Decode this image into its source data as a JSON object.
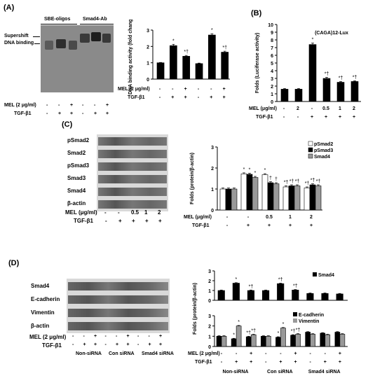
{
  "panels": {
    "a": {
      "letter": "(A)"
    },
    "b": {
      "letter": "(B)"
    },
    "c": {
      "letter": "(C)"
    },
    "d": {
      "letter": "(D)"
    }
  },
  "gel_a": {
    "header_left": "SBE-oligos",
    "header_right": "Smad4-Ab",
    "label_supershift": "Supershift",
    "label_binding": "DNA binding",
    "row_mel_label": "MEL (2 μg/ml)",
    "row_tgf_label": "TGF-β1",
    "mel_signs": [
      "-",
      "-",
      "+",
      "-",
      "-",
      "+"
    ],
    "tgf_signs": [
      "-",
      "+",
      "+",
      "-",
      "+",
      "+"
    ]
  },
  "blot_c": {
    "rows": [
      "pSmad2",
      "Smad2",
      "pSmad3",
      "Smad3",
      "Smad4",
      "β-actin"
    ],
    "row_mel_label": "MEL (μg/ml)",
    "row_tgf_label": "TGF-β1",
    "mel_values": [
      "-",
      "-",
      "0.5",
      "1",
      "2"
    ],
    "tgf_signs": [
      "-",
      "+",
      "+",
      "+",
      "+"
    ]
  },
  "blot_d": {
    "rows": [
      "Smad4",
      "E-cadherin",
      "Vimentin",
      "β-actin"
    ],
    "row_mel_label": "MEL (2 μg/ml)",
    "row_tgf_label": "TGF-β1",
    "mel_signs": [
      "-",
      "-",
      "+",
      "-",
      "-",
      "+",
      "-",
      "-",
      "+"
    ],
    "tgf_signs": [
      "-",
      "+",
      "+",
      "-",
      "+",
      "+",
      "-",
      "+",
      "+"
    ],
    "groups": [
      "Non-siRNA",
      "Con siRNA",
      "Smad4 siRNA"
    ]
  },
  "chart_data": [
    {
      "id": "A",
      "type": "bar",
      "ylabel": "DNA binding activity (fold change)",
      "ylim": [
        0,
        3
      ],
      "yticks": [
        0,
        1,
        2,
        3
      ],
      "values": [
        1.0,
        2.05,
        1.4,
        0.95,
        2.7,
        1.65
      ],
      "errors": [
        0.02,
        0.08,
        0.05,
        0.03,
        0.08,
        0.06
      ],
      "annotations": [
        "",
        "*",
        "*†",
        "",
        "*",
        "*†"
      ],
      "row_labels": {
        "mel": "MEL (2 μg/ml)",
        "tgf": "TGF-β1"
      },
      "mel_signs": [
        "-",
        "-",
        "+",
        "-",
        "-",
        "+"
      ],
      "tgf_signs": [
        "-",
        "+",
        "+",
        "-",
        "+",
        "+"
      ]
    },
    {
      "id": "B",
      "type": "line",
      "title": "(CAGA)12-Lux",
      "ylabel": "Folds (Luciferase activity)",
      "ylim": [
        0,
        10
      ],
      "yticks": [
        0,
        1,
        2,
        3,
        4,
        5,
        6,
        7,
        8,
        9,
        10
      ],
      "values": [
        1.6,
        1.6,
        7.4,
        3.0,
        2.5,
        2.6
      ],
      "errors": [
        0.1,
        0.1,
        0.2,
        0.15,
        0.1,
        0.1
      ],
      "annotations": [
        "",
        "",
        "*",
        "*†",
        "*†",
        "*†"
      ],
      "row_labels": {
        "mel": "MEL (μg/ml)",
        "tgf": "TGF-β1"
      },
      "mel_values": [
        "-",
        "2",
        "-",
        "0.5",
        "1",
        "2"
      ],
      "tgf_signs": [
        "-",
        "-",
        "+",
        "+",
        "+",
        "+"
      ]
    },
    {
      "id": "C",
      "type": "bar",
      "ylabel": "Folds (protein/β-actin)",
      "ylim": [
        0,
        3
      ],
      "yticks": [
        0,
        1,
        2,
        3
      ],
      "legend": [
        "pSmad2",
        "pSmad3",
        "Smad4"
      ],
      "series": [
        {
          "name": "pSmad2",
          "values": [
            1.0,
            1.72,
            1.68,
            1.1,
            1.05
          ],
          "annotations": [
            "",
            "*",
            "*",
            "*†",
            "*†"
          ]
        },
        {
          "name": "pSmad3",
          "values": [
            1.0,
            1.7,
            1.3,
            1.15,
            1.2
          ],
          "annotations": [
            "",
            "*",
            "†",
            "*†",
            "*†"
          ]
        },
        {
          "name": "Smad4",
          "values": [
            1.0,
            1.55,
            1.25,
            1.15,
            1.15
          ],
          "annotations": [
            "",
            "*",
            "†",
            "*†",
            "*†"
          ]
        }
      ],
      "row_labels": {
        "mel": "MEL (μg/ml)",
        "tgf": "TGF-β1"
      },
      "mel_values": [
        "-",
        "-",
        "0.5",
        "1",
        "2"
      ],
      "tgf_signs": [
        "-",
        "+",
        "+",
        "+",
        "+"
      ]
    },
    {
      "id": "D-top",
      "type": "bar",
      "ylabel": "Folds (protein/β-actin)",
      "ylim": [
        0,
        3
      ],
      "yticks": [
        0,
        1,
        2,
        3
      ],
      "legend": [
        "Smad4"
      ],
      "series": [
        {
          "name": "Smad4",
          "values": [
            1.0,
            1.75,
            1.0,
            1.0,
            1.7,
            1.05,
            0.7,
            0.7,
            0.65
          ],
          "annotations": [
            "",
            "*",
            "*†",
            "",
            "*†",
            "*†",
            "",
            "",
            ""
          ]
        }
      ]
    },
    {
      "id": "D-bottom",
      "type": "bar",
      "ylim": [
        0,
        3
      ],
      "yticks": [
        0,
        1,
        2,
        3
      ],
      "legend": [
        "E-cadherin",
        "Vimentin"
      ],
      "series": [
        {
          "name": "E-cadherin",
          "values": [
            1.0,
            0.75,
            0.95,
            1.0,
            0.9,
            1.1,
            1.4,
            1.3,
            1.4
          ],
          "annotations": [
            "",
            "*",
            "*†",
            "",
            "*",
            "*†",
            "",
            "",
            ""
          ]
        },
        {
          "name": "Vimentin",
          "values": [
            1.0,
            2.0,
            1.15,
            1.0,
            1.8,
            1.2,
            1.2,
            1.15,
            1.2
          ],
          "annotations": [
            "",
            "*",
            "*†",
            "",
            "*",
            "*†",
            "",
            "",
            ""
          ]
        }
      ],
      "row_labels": {
        "mel": "MEL (2 μg/ml)",
        "tgf": "TGF-β1"
      },
      "mel_signs": [
        "-",
        "-",
        "+",
        "-",
        "-",
        "+",
        "-",
        "-",
        "+"
      ],
      "tgf_signs": [
        "-",
        "+",
        "+",
        "-",
        "+",
        "+",
        "-",
        "+",
        "+"
      ],
      "groups": [
        "Non-siRNA",
        "Con siRNA",
        "Smad4 siRNA"
      ]
    }
  ]
}
